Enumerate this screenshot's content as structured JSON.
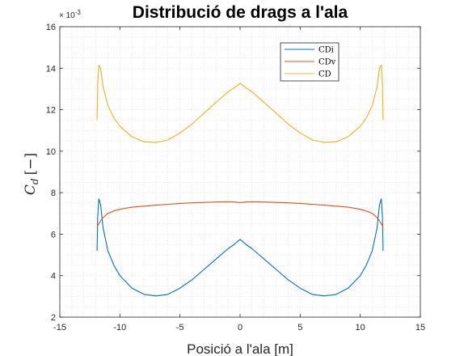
{
  "chart_data": {
    "type": "line",
    "title": "Distribució de drags a l'ala",
    "xlabel": "Posició a l'ala [m]",
    "ylabel_main": "C",
    "ylabel_sub": "d",
    "ylabel_unit": "[−]",
    "y_multiplier_base": "× 10",
    "y_multiplier_exp": "-3",
    "xlim": [
      -15,
      15
    ],
    "ylim": [
      2,
      16
    ],
    "xticks": [
      -15,
      -10,
      -5,
      0,
      5,
      10,
      15
    ],
    "yticks": [
      2,
      4,
      6,
      8,
      10,
      12,
      14,
      16
    ],
    "grid": "minor-dotted",
    "legend_position": "top-right",
    "x": [
      -11.9,
      -11.85,
      -11.75,
      -11.6,
      -11.4,
      -11.0,
      -10.5,
      -10.0,
      -9.0,
      -8.0,
      -7.0,
      -6.0,
      -5.0,
      -4.0,
      -3.0,
      -2.0,
      -1.0,
      -0.5,
      0,
      0.5,
      1.0,
      2.0,
      3.0,
      4.0,
      5.0,
      6.0,
      7.0,
      8.0,
      9.0,
      10.0,
      10.5,
      11.0,
      11.4,
      11.6,
      11.75,
      11.85,
      11.9
    ],
    "series": [
      {
        "name": "CDi",
        "color": "#0072BD",
        "values": [
          5.2,
          6.8,
          7.7,
          7.4,
          6.3,
          5.2,
          4.5,
          4.0,
          3.4,
          3.1,
          3.02,
          3.1,
          3.4,
          3.8,
          4.3,
          4.8,
          5.3,
          5.5,
          5.75,
          5.5,
          5.3,
          4.8,
          4.3,
          3.8,
          3.4,
          3.1,
          3.02,
          3.1,
          3.4,
          4.0,
          4.5,
          5.2,
          6.3,
          7.4,
          7.7,
          6.8,
          5.2
        ]
      },
      {
        "name": "CDv",
        "color": "#D95319",
        "values": [
          6.3,
          6.4,
          6.5,
          6.65,
          6.8,
          7.0,
          7.12,
          7.2,
          7.3,
          7.35,
          7.4,
          7.44,
          7.48,
          7.51,
          7.53,
          7.55,
          7.56,
          7.55,
          7.52,
          7.55,
          7.56,
          7.55,
          7.53,
          7.51,
          7.48,
          7.44,
          7.4,
          7.35,
          7.3,
          7.2,
          7.12,
          7.0,
          6.8,
          6.65,
          6.5,
          6.4,
          6.3
        ]
      },
      {
        "name": "CD",
        "color": "#EDB120",
        "values": [
          11.5,
          13.2,
          14.15,
          14.0,
          13.1,
          12.2,
          11.6,
          11.2,
          10.7,
          10.45,
          10.42,
          10.54,
          10.88,
          11.31,
          11.83,
          12.35,
          12.86,
          13.05,
          13.27,
          13.05,
          12.86,
          12.35,
          11.83,
          11.31,
          10.88,
          10.54,
          10.42,
          10.45,
          10.7,
          11.2,
          11.6,
          12.2,
          13.1,
          14.0,
          14.15,
          13.2,
          11.5
        ]
      }
    ]
  }
}
